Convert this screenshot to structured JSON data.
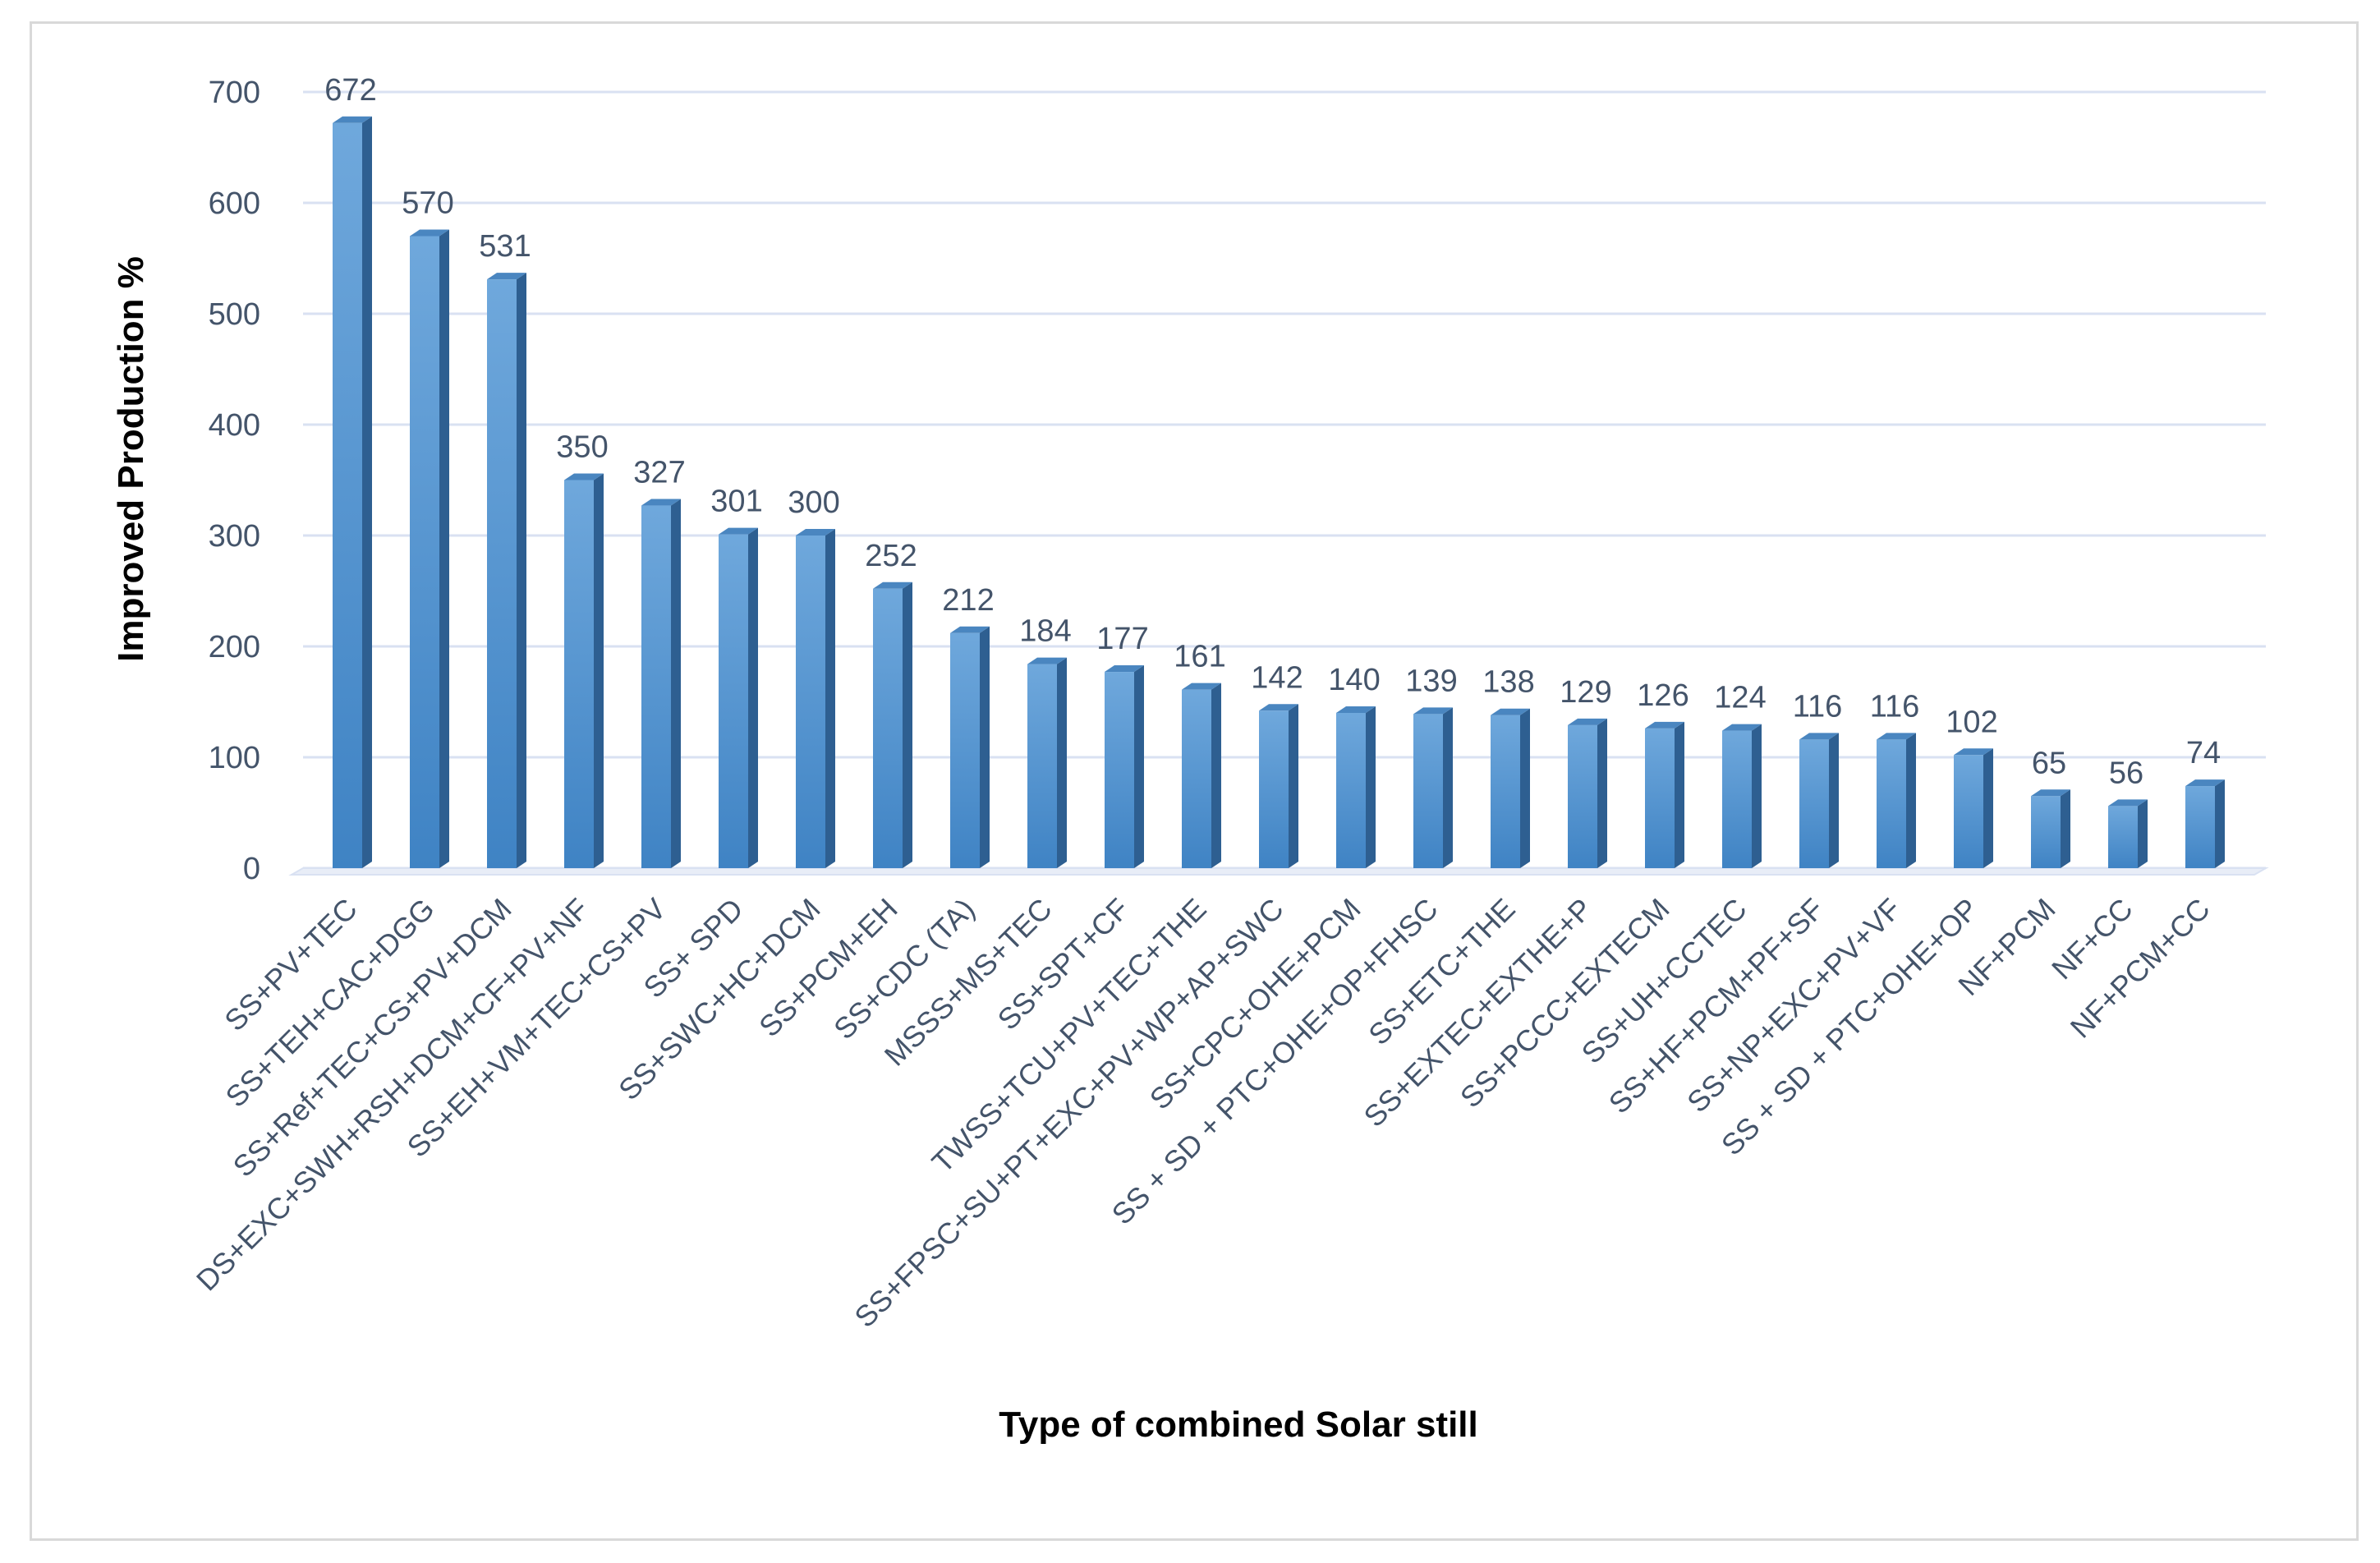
{
  "chart_data": {
    "type": "bar",
    "style": "3d-column",
    "title": "",
    "xlabel": "Type of combined Solar still",
    "ylabel": "Improved Production %",
    "ylim": [
      0,
      700
    ],
    "yticks": [
      0,
      100,
      200,
      300,
      400,
      500,
      600,
      700
    ],
    "grid": true,
    "legend": "none",
    "categories": [
      "SS+PV+TEC",
      "SS+TEH+CAC+DGG",
      "SS+Ref+TEC+CS+PV+DCM",
      "DS+EXC+SWH+RSH+DCM+CF+PV+NF",
      "SS+EH+VM+TEC+CS+PV",
      "SS+ SPD",
      "SS+SWC+HC+DCM",
      "SS+PCM+EH",
      "SS+CDC (TA)",
      "MSSS+MS+TEC",
      "SS+SPT+CF",
      "TWSS+TCU+PV+TEC+THE",
      "SS+FPSC+SU+PT+EXC+PV+WP+AP+SWC",
      "SS+CPC+OHE+PCM",
      "SS + SD + PTC+OHE+OP+FHSC",
      "SS+ETC+THE",
      "SS+EXTEC+EXTHE+P",
      "SS+PCCC+EXTECM",
      "SS+UH+CCTEC",
      "SS+HF+PCM+PF+SF",
      "SS+NP+EXC+PV+VF",
      "SS + SD + PTC+OHE+OP",
      "NF+PCM",
      "NF+CC",
      "NF+PCM+CC"
    ],
    "values": [
      672,
      570,
      531,
      350,
      327,
      301,
      300,
      252,
      212,
      184,
      177,
      161,
      142,
      140,
      139,
      138,
      129,
      126,
      124,
      116,
      116,
      102,
      65,
      56,
      74
    ],
    "data_labels": [
      "672",
      "570",
      "531",
      "350",
      "327",
      "301",
      "300",
      "252",
      "212",
      "184",
      "177",
      "161",
      "142",
      "140",
      "139",
      "138",
      "129",
      "126",
      "124",
      "116",
      "116",
      "102",
      "65",
      "56",
      "74"
    ],
    "colors": {
      "bar_front": "#5b9bd5",
      "bar_front_light": "#6fa8dc",
      "bar_front_dark": "#3f83c4",
      "bar_side": "#2e5f91",
      "bar_top": "#4a86c0",
      "grid": "#d9e1f2",
      "text": "#44546a"
    }
  }
}
